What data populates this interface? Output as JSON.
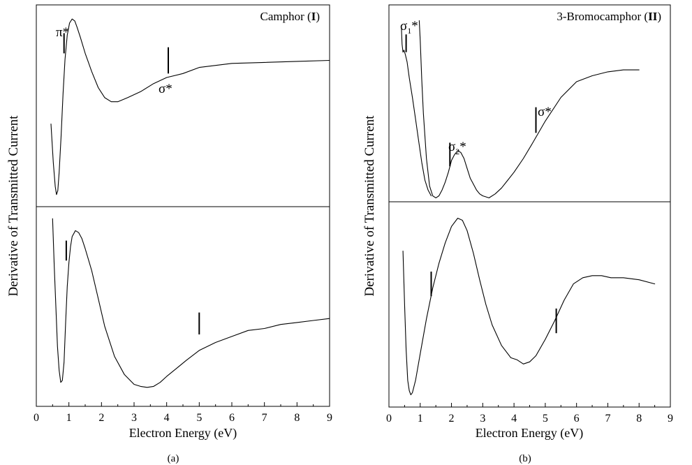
{
  "chart_data": [
    {
      "panel": "(a)",
      "type": "line",
      "title_prefix": "Camphor (",
      "title_bold": "I",
      "title_suffix": ")",
      "xlabel": "Electron Energy (eV)",
      "ylabel": "Derivative of Transmitted Current",
      "xlim": [
        0,
        9
      ],
      "xticks": [
        0,
        1,
        2,
        3,
        4,
        5,
        6,
        7,
        8,
        9
      ],
      "y_ticks_shown": false,
      "grid": false,
      "upper": {
        "ylim": [
          0,
          1
        ],
        "series": [
          {
            "x": [
              0.45,
              0.52,
              0.58,
              0.62,
              0.66,
              0.7,
              0.76,
              0.82,
              0.88,
              0.95,
              1.02,
              1.1,
              1.18,
              1.25,
              1.35,
              1.5,
              1.7,
              1.9,
              2.1,
              2.3,
              2.5,
              2.8,
              3.2,
              3.6,
              4.0,
              4.5,
              5.0,
              5.5,
              6.0,
              7.0,
              8.0,
              9.0
            ],
            "y": [
              0.41,
              0.22,
              0.1,
              0.06,
              0.08,
              0.17,
              0.35,
              0.56,
              0.73,
              0.85,
              0.91,
              0.93,
              0.92,
              0.89,
              0.84,
              0.76,
              0.67,
              0.59,
              0.54,
              0.52,
              0.52,
              0.54,
              0.57,
              0.61,
              0.64,
              0.66,
              0.69,
              0.7,
              0.71,
              0.715,
              0.72,
              0.725
            ]
          }
        ],
        "markers": [
          {
            "x": 0.85,
            "y_from": 0.76,
            "y_to": 0.86,
            "label": "π*"
          },
          {
            "x": 4.05,
            "y_from": 0.66,
            "y_to": 0.79,
            "label": "σ*"
          }
        ]
      },
      "lower": {
        "ylim": [
          0,
          1
        ],
        "series": [
          {
            "x": [
              0.5,
              0.55,
              0.6,
              0.65,
              0.7,
              0.75,
              0.8,
              0.85,
              0.9,
              0.95,
              1.0,
              1.05,
              1.1,
              1.2,
              1.3,
              1.4,
              1.5,
              1.7,
              1.9,
              2.1,
              2.4,
              2.7,
              3.0,
              3.2,
              3.4,
              3.6,
              3.8,
              4.0,
              4.3,
              4.6,
              5.0,
              5.5,
              6.0,
              6.5,
              7.0,
              7.5,
              8.0,
              8.5,
              9.0
            ],
            "y": [
              0.94,
              0.7,
              0.5,
              0.3,
              0.18,
              0.12,
              0.13,
              0.22,
              0.42,
              0.6,
              0.72,
              0.8,
              0.85,
              0.88,
              0.87,
              0.84,
              0.79,
              0.68,
              0.54,
              0.4,
              0.25,
              0.16,
              0.11,
              0.1,
              0.095,
              0.1,
              0.12,
              0.15,
              0.19,
              0.23,
              0.28,
              0.32,
              0.35,
              0.38,
              0.39,
              0.41,
              0.42,
              0.43,
              0.44
            ]
          }
        ],
        "markers": [
          {
            "x": 0.92,
            "y_from": 0.73,
            "y_to": 0.83
          },
          {
            "x": 5.0,
            "y_from": 0.36,
            "y_to": 0.47
          }
        ]
      }
    },
    {
      "panel": "(b)",
      "type": "line",
      "title_prefix": "3-Bromocamphor (",
      "title_bold": "II",
      "title_suffix": ")",
      "xlabel": "Electron Energy (eV)",
      "ylabel": "Derivative of Transmitted Current",
      "xlim": [
        0,
        9
      ],
      "xticks": [
        0,
        1,
        2,
        3,
        4,
        5,
        6,
        7,
        8,
        9
      ],
      "y_ticks_shown": false,
      "grid": false,
      "upper": {
        "ylim": [
          0,
          1
        ],
        "series": [
          {
            "x": [
              0.4,
              0.42,
              0.45,
              0.48,
              0.52,
              0.58,
              0.65,
              0.75,
              0.85,
              0.95,
              1.05,
              1.15,
              1.25,
              1.35
            ],
            "y": [
              0.88,
              0.8,
              0.76,
              0.77,
              0.75,
              0.71,
              0.63,
              0.53,
              0.42,
              0.31,
              0.2,
              0.11,
              0.06,
              0.03
            ]
          },
          {
            "x": [
              0.97,
              1.0,
              1.05,
              1.1,
              1.2,
              1.3,
              1.4,
              1.5,
              1.6,
              1.7,
              1.8,
              1.9,
              2.0,
              2.1,
              2.2,
              2.3,
              2.4,
              2.5,
              2.6,
              2.7,
              2.8,
              2.9,
              3.0,
              3.2,
              3.4,
              3.6,
              3.8,
              4.0,
              4.3,
              4.6,
              5.0,
              5.5,
              6.0,
              6.5,
              7.0,
              7.5,
              8.0
            ],
            "y": [
              0.92,
              0.82,
              0.62,
              0.45,
              0.22,
              0.08,
              0.03,
              0.02,
              0.03,
              0.06,
              0.1,
              0.15,
              0.21,
              0.24,
              0.26,
              0.25,
              0.22,
              0.17,
              0.12,
              0.09,
              0.06,
              0.04,
              0.03,
              0.02,
              0.04,
              0.07,
              0.11,
              0.15,
              0.22,
              0.3,
              0.41,
              0.53,
              0.61,
              0.64,
              0.66,
              0.67,
              0.67
            ]
          }
        ],
        "markers": [
          {
            "x": 0.55,
            "y_from": 0.76,
            "y_to": 0.85,
            "label": "σ1*"
          },
          {
            "x": 1.95,
            "y_from": 0.18,
            "y_to": 0.3,
            "label": "σ2*"
          },
          {
            "x": 4.7,
            "y_from": 0.35,
            "y_to": 0.48,
            "label": "σ*"
          }
        ]
      },
      "lower": {
        "ylim": [
          0,
          1
        ],
        "series": [
          {
            "x": [
              0.45,
              0.5,
              0.55,
              0.6,
              0.65,
              0.7,
              0.75,
              0.85,
              1.0,
              1.2,
              1.4,
              1.6,
              1.8,
              2.0,
              2.2,
              2.35,
              2.5,
              2.7,
              2.9,
              3.1,
              3.3,
              3.6,
              3.9,
              4.1,
              4.3,
              4.5,
              4.7,
              5.0,
              5.3,
              5.6,
              5.9,
              6.2,
              6.5,
              6.8,
              7.1,
              7.5,
              8.0,
              8.5
            ],
            "y": [
              0.76,
              0.5,
              0.28,
              0.13,
              0.08,
              0.06,
              0.07,
              0.13,
              0.26,
              0.43,
              0.58,
              0.7,
              0.8,
              0.88,
              0.92,
              0.91,
              0.86,
              0.75,
              0.62,
              0.5,
              0.4,
              0.3,
              0.24,
              0.23,
              0.21,
              0.22,
              0.25,
              0.33,
              0.42,
              0.52,
              0.6,
              0.63,
              0.64,
              0.64,
              0.63,
              0.63,
              0.62,
              0.6
            ]
          }
        ],
        "markers": [
          {
            "x": 1.35,
            "y_from": 0.54,
            "y_to": 0.66
          },
          {
            "x": 5.35,
            "y_from": 0.36,
            "y_to": 0.48
          }
        ]
      }
    }
  ]
}
